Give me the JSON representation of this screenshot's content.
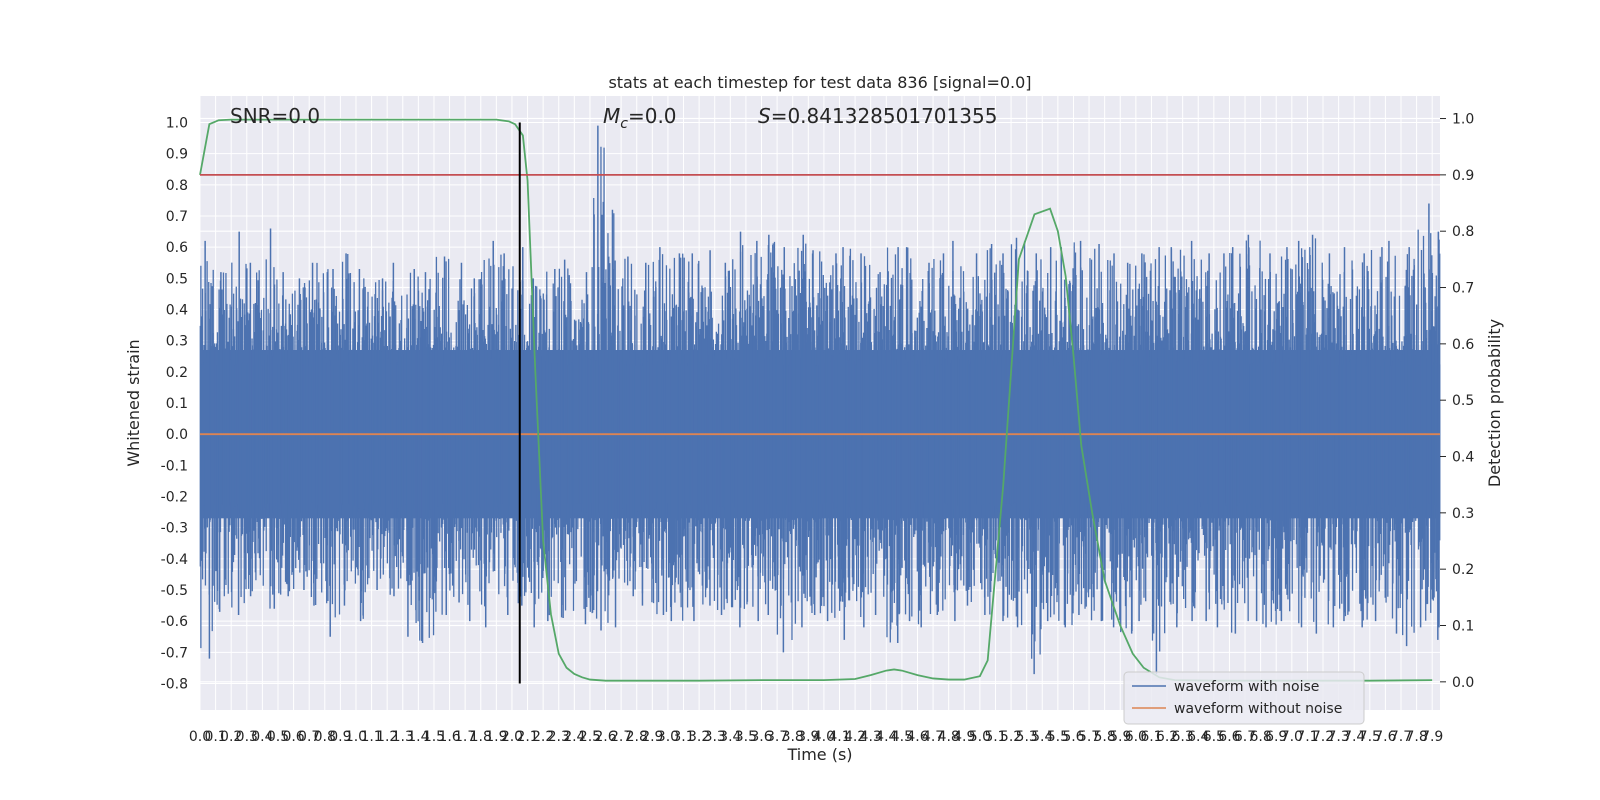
{
  "chart_data": {
    "type": "line",
    "title": "stats at each timestep for test data 836 [signal=0.0]",
    "xlabel": "Time (s)",
    "ylabel_left": "Whitened strain",
    "ylabel_right": "Detection probability",
    "annotations": {
      "snr": "SNR=0.0",
      "mc_symbol": "M",
      "mc_subscript": "c",
      "mc_value": "=0.0",
      "s_symbol": "S",
      "s_value": "=0.841328501701355"
    },
    "xlim": [
      0.0,
      7.95
    ],
    "ylim_left": [
      -0.885,
      1.085
    ],
    "ylim_right": [
      -0.05,
      1.04
    ],
    "x_ticks": [
      0.0,
      0.1,
      0.2,
      0.3,
      0.4,
      0.5,
      0.6,
      0.7,
      0.8,
      0.9,
      1.0,
      1.1,
      1.2,
      1.3,
      1.4,
      1.5,
      1.6,
      1.7,
      1.8,
      1.9,
      2.0,
      2.1,
      2.2,
      2.3,
      2.4,
      2.5,
      2.6,
      2.7,
      2.8,
      2.9,
      3.0,
      3.1,
      3.2,
      3.3,
      3.4,
      3.5,
      3.6,
      3.7,
      3.8,
      3.9,
      4.0,
      4.1,
      4.2,
      4.3,
      4.4,
      4.5,
      4.6,
      4.7,
      4.8,
      4.9,
      5.0,
      5.1,
      5.2,
      5.3,
      5.4,
      5.5,
      5.6,
      5.7,
      5.8,
      5.9,
      6.0,
      6.1,
      6.2,
      6.3,
      6.4,
      6.5,
      6.6,
      6.7,
      6.8,
      6.9,
      7.0,
      7.1,
      7.2,
      7.3,
      7.4,
      7.5,
      7.6,
      7.7,
      7.8,
      7.9
    ],
    "y_ticks_left": [
      -0.8,
      -0.7,
      -0.6,
      -0.5,
      -0.4,
      -0.3,
      -0.2,
      -0.1,
      0.0,
      0.1,
      0.2,
      0.3,
      0.4,
      0.5,
      0.6,
      0.7,
      0.8,
      0.9,
      1.0
    ],
    "y_ticks_right": [
      0.0,
      0.1,
      0.2,
      0.3,
      0.4,
      0.5,
      0.6,
      0.7,
      0.8,
      0.9,
      1.0
    ],
    "grid": true,
    "legend": {
      "placement": "lower-right",
      "entries": [
        "waveform with noise",
        "waveform without noise"
      ]
    },
    "series": [
      {
        "name": "waveform with noise",
        "color": "#4c72b0",
        "axis": "left",
        "kind": "dense noise trace (~0.1s envelope shown)",
        "x": [
          0.0,
          0.1,
          0.2,
          0.3,
          0.4,
          0.5,
          0.6,
          0.7,
          0.8,
          0.9,
          1.0,
          1.1,
          1.2,
          1.3,
          1.4,
          1.5,
          1.6,
          1.7,
          1.8,
          1.9,
          2.0,
          2.1,
          2.2,
          2.3,
          2.4,
          2.5,
          2.6,
          2.7,
          2.8,
          2.9,
          3.0,
          3.1,
          3.2,
          3.3,
          3.4,
          3.5,
          3.6,
          3.7,
          3.8,
          3.9,
          4.0,
          4.1,
          4.2,
          4.3,
          4.4,
          4.5,
          4.6,
          4.7,
          4.8,
          4.9,
          5.0,
          5.1,
          5.2,
          5.3,
          5.4,
          5.5,
          5.6,
          5.7,
          5.8,
          5.9,
          6.0,
          6.1,
          6.2,
          6.3,
          6.4,
          6.5,
          6.6,
          6.7,
          6.8,
          6.9,
          7.0,
          7.1,
          7.2,
          7.3,
          7.4,
          7.5,
          7.6,
          7.7,
          7.8,
          7.9
        ],
        "upper": [
          0.62,
          0.52,
          0.65,
          0.55,
          0.66,
          0.52,
          0.5,
          0.55,
          0.53,
          0.58,
          0.53,
          0.5,
          0.55,
          0.53,
          0.52,
          0.57,
          0.55,
          0.5,
          0.62,
          0.58,
          0.6,
          0.5,
          0.53,
          0.56,
          0.52,
          0.99,
          0.72,
          0.57,
          0.55,
          0.6,
          0.58,
          0.58,
          0.59,
          0.55,
          0.65,
          0.62,
          0.64,
          0.6,
          0.64,
          0.59,
          0.58,
          0.6,
          0.58,
          0.52,
          0.6,
          0.6,
          0.55,
          0.58,
          0.62,
          0.58,
          0.61,
          0.58,
          0.63,
          0.58,
          0.6,
          0.6,
          0.62,
          0.61,
          0.58,
          0.55,
          0.58,
          0.6,
          0.6,
          0.62,
          0.58,
          0.58,
          0.6,
          0.64,
          0.58,
          0.6,
          0.62,
          0.64,
          0.58,
          0.6,
          0.58,
          0.6,
          0.62,
          0.6,
          0.74,
          0.65
        ],
        "lower": [
          -0.72,
          -0.57,
          -0.58,
          -0.52,
          -0.56,
          -0.52,
          -0.5,
          -0.55,
          -0.65,
          -0.55,
          -0.6,
          -0.5,
          -0.52,
          -0.65,
          -0.67,
          -0.58,
          -0.54,
          -0.6,
          -0.62,
          -0.58,
          -0.55,
          -0.62,
          -0.6,
          -0.59,
          -0.61,
          -0.63,
          -0.62,
          -0.52,
          -0.55,
          -0.58,
          -0.6,
          -0.6,
          -0.55,
          -0.58,
          -0.62,
          -0.6,
          -0.58,
          -0.7,
          -0.62,
          -0.58,
          -0.6,
          -0.66,
          -0.62,
          -0.58,
          -0.67,
          -0.6,
          -0.62,
          -0.58,
          -0.6,
          -0.55,
          -0.58,
          -0.6,
          -0.62,
          -0.77,
          -0.6,
          -0.62,
          -0.58,
          -0.6,
          -0.62,
          -0.64,
          -0.6,
          -0.77,
          -0.62,
          -0.6,
          -0.6,
          -0.62,
          -0.64,
          -0.6,
          -0.62,
          -0.6,
          -0.62,
          -0.64,
          -0.62,
          -0.6,
          -0.62,
          -0.6,
          -0.64,
          -0.68,
          -0.62,
          -0.66
        ]
      },
      {
        "name": "waveform without noise",
        "color": "#dd8452",
        "axis": "left",
        "x": [
          0.0,
          7.95
        ],
        "y": [
          0.0,
          0.0
        ]
      },
      {
        "color": "#55a868",
        "axis": "right",
        "x": [
          0.0,
          0.06,
          0.12,
          0.2,
          0.4,
          1.0,
          1.5,
          1.9,
          1.98,
          2.02,
          2.07,
          2.1,
          2.15,
          2.2,
          2.25,
          2.3,
          2.35,
          2.4,
          2.45,
          2.5,
          2.6,
          2.8,
          3.2,
          3.6,
          4.0,
          4.2,
          4.3,
          4.4,
          4.45,
          4.5,
          4.6,
          4.7,
          4.8,
          4.9,
          5.0,
          5.05,
          5.15,
          5.25,
          5.35,
          5.45,
          5.5,
          5.55,
          5.6,
          5.65,
          5.72,
          5.8,
          5.9,
          5.98,
          6.05,
          6.15,
          6.25,
          6.5,
          7.0,
          7.5,
          7.9
        ],
        "y": [
          0.9,
          0.99,
          0.997,
          0.998,
          0.998,
          0.998,
          0.998,
          0.998,
          0.995,
          0.99,
          0.97,
          0.89,
          0.55,
          0.25,
          0.12,
          0.05,
          0.025,
          0.014,
          0.008,
          0.004,
          0.002,
          0.002,
          0.002,
          0.003,
          0.003,
          0.005,
          0.012,
          0.02,
          0.022,
          0.02,
          0.012,
          0.006,
          0.004,
          0.004,
          0.01,
          0.038,
          0.35,
          0.75,
          0.83,
          0.84,
          0.8,
          0.72,
          0.58,
          0.42,
          0.3,
          0.18,
          0.1,
          0.05,
          0.025,
          0.008,
          0.003,
          0.002,
          0.002,
          0.002,
          0.003
        ]
      },
      {
        "color": "#c44e52",
        "axis": "right",
        "x": [
          0.0,
          7.95
        ],
        "y": [
          0.9,
          0.9
        ]
      },
      {
        "color": "#000000",
        "axis": "left",
        "kind": "vertical line",
        "x": [
          2.05,
          2.05
        ],
        "y": [
          -0.8,
          1.0
        ]
      }
    ]
  }
}
